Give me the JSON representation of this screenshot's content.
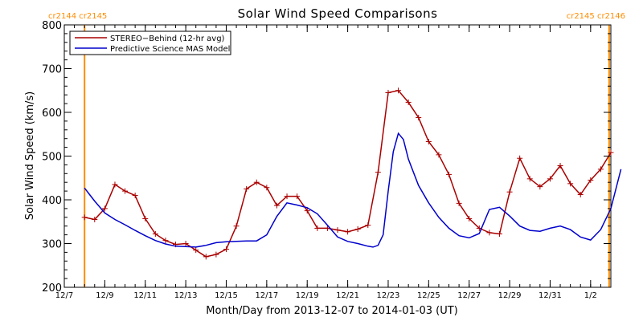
{
  "chart_data": {
    "type": "line",
    "title": "Solar Wind Speed Comparisons",
    "xlabel": "Month/Day from 2013-12-07 to 2014-01-03 (UT)",
    "ylabel": "Solar Wind Speed (km/s)",
    "ylim": [
      200,
      800
    ],
    "yticks": [
      200,
      300,
      400,
      500,
      600,
      700,
      800
    ],
    "xlim": [
      "2013-12-07",
      "2014-01-03"
    ],
    "xtick_dates": [
      "2013-12-07",
      "2013-12-09",
      "2013-12-11",
      "2013-12-13",
      "2013-12-15",
      "2013-12-17",
      "2013-12-19",
      "2013-12-21",
      "2013-12-23",
      "2013-12-25",
      "2013-12-27",
      "2013-12-29",
      "2013-12-31",
      "2014-01-02"
    ],
    "xtick_labels": [
      "12/7",
      "12/9",
      "12/11",
      "12/13",
      "12/15",
      "12/17",
      "12/19",
      "12/21",
      "12/23",
      "12/25",
      "12/27",
      "12/29",
      "12/31",
      "1/2"
    ],
    "legend_position": "top-left",
    "carrington": {
      "left_label": "cr2144 cr2145",
      "right_label": "cr2145 cr2146",
      "left_boundary": "2013-12-08 00:00",
      "right_boundary": "2014-01-02 22:00",
      "color": "#ff8c00"
    },
    "series": [
      {
        "name": "STEREO−Behind (12-hr avg)",
        "color": "#aa0000",
        "marker": "plus",
        "x": [
          "2013-12-08 00:00",
          "2013-12-08 12:00",
          "2013-12-09 00:00",
          "2013-12-09 12:00",
          "2013-12-10 00:00",
          "2013-12-10 12:00",
          "2013-12-11 00:00",
          "2013-12-11 12:00",
          "2013-12-12 00:00",
          "2013-12-12 12:00",
          "2013-12-13 00:00",
          "2013-12-13 12:00",
          "2013-12-14 00:00",
          "2013-12-14 12:00",
          "2013-12-15 00:00",
          "2013-12-15 12:00",
          "2013-12-16 00:00",
          "2013-12-16 12:00",
          "2013-12-17 00:00",
          "2013-12-17 12:00",
          "2013-12-18 00:00",
          "2013-12-18 12:00",
          "2013-12-19 00:00",
          "2013-12-19 12:00",
          "2013-12-20 00:00",
          "2013-12-20 12:00",
          "2013-12-21 00:00",
          "2013-12-21 12:00",
          "2013-12-22 00:00",
          "2013-12-22 12:00",
          "2013-12-23 00:00",
          "2013-12-23 12:00",
          "2013-12-24 00:00",
          "2013-12-24 12:00",
          "2013-12-25 00:00",
          "2013-12-25 12:00",
          "2013-12-26 00:00",
          "2013-12-26 12:00",
          "2013-12-27 00:00",
          "2013-12-27 12:00",
          "2013-12-28 00:00",
          "2013-12-28 12:00",
          "2013-12-29 00:00",
          "2013-12-29 12:00",
          "2013-12-30 00:00",
          "2013-12-30 12:00",
          "2013-12-31 00:00",
          "2013-12-31 12:00",
          "2014-01-01 00:00",
          "2014-01-01 12:00",
          "2014-01-02 00:00",
          "2014-01-02 12:00",
          "2014-01-03 00:00"
        ],
        "y": [
          360,
          355,
          380,
          435,
          420,
          410,
          357,
          322,
          307,
          298,
          300,
          285,
          270,
          275,
          287,
          340,
          425,
          440,
          428,
          387,
          408,
          408,
          375,
          335,
          335,
          331,
          327,
          333,
          342,
          463,
          645,
          650,
          623,
          588,
          533,
          503,
          458,
          392,
          357,
          335,
          325,
          322,
          418,
          495,
          448,
          430,
          448,
          478,
          437,
          412,
          445,
          470,
          508
        ]
      },
      {
        "name": "Predictive Science MAS Model",
        "color": "#0000cc",
        "marker": "none",
        "x": [
          "2013-12-08 00:00",
          "2013-12-08 06:00",
          "2013-12-08 12:00",
          "2013-12-09 00:00",
          "2013-12-09 12:00",
          "2013-12-10 00:00",
          "2013-12-10 12:00",
          "2013-12-11 00:00",
          "2013-12-11 12:00",
          "2013-12-12 00:00",
          "2013-12-12 12:00",
          "2013-12-13 00:00",
          "2013-12-13 12:00",
          "2013-12-14 00:00",
          "2013-12-14 12:00",
          "2013-12-15 00:00",
          "2013-12-15 12:00",
          "2013-12-16 00:00",
          "2013-12-16 12:00",
          "2013-12-17 00:00",
          "2013-12-17 12:00",
          "2013-12-18 00:00",
          "2013-12-18 12:00",
          "2013-12-19 00:00",
          "2013-12-19 12:00",
          "2013-12-20 00:00",
          "2013-12-20 12:00",
          "2013-12-21 00:00",
          "2013-12-21 12:00",
          "2013-12-22 00:00",
          "2013-12-22 06:00",
          "2013-12-22 12:00",
          "2013-12-22 18:00",
          "2013-12-23 00:00",
          "2013-12-23 06:00",
          "2013-12-23 12:00",
          "2013-12-23 18:00",
          "2013-12-24 00:00",
          "2013-12-24 12:00",
          "2013-12-25 00:00",
          "2013-12-25 12:00",
          "2013-12-26 00:00",
          "2013-12-26 12:00",
          "2013-12-27 00:00",
          "2013-12-27 12:00",
          "2013-12-28 00:00",
          "2013-12-28 12:00",
          "2013-12-29 00:00",
          "2013-12-29 12:00",
          "2013-12-30 00:00",
          "2013-12-30 12:00",
          "2013-12-31 00:00",
          "2013-12-31 12:00",
          "2014-01-01 00:00",
          "2014-01-01 12:00",
          "2014-01-02 00:00",
          "2014-01-02 12:00",
          "2014-01-03 00:00",
          "2014-01-03 12:00"
        ],
        "y": [
          427,
          412,
          397,
          370,
          355,
          343,
          330,
          318,
          307,
          299,
          294,
          293,
          292,
          296,
          302,
          304,
          305,
          306,
          306,
          320,
          362,
          393,
          388,
          382,
          368,
          342,
          315,
          305,
          300,
          294,
          292,
          296,
          320,
          420,
          510,
          552,
          538,
          493,
          433,
          393,
          360,
          335,
          318,
          313,
          323,
          378,
          383,
          363,
          340,
          330,
          328,
          335,
          340,
          332,
          315,
          308,
          332,
          380,
          470
        ]
      }
    ]
  }
}
